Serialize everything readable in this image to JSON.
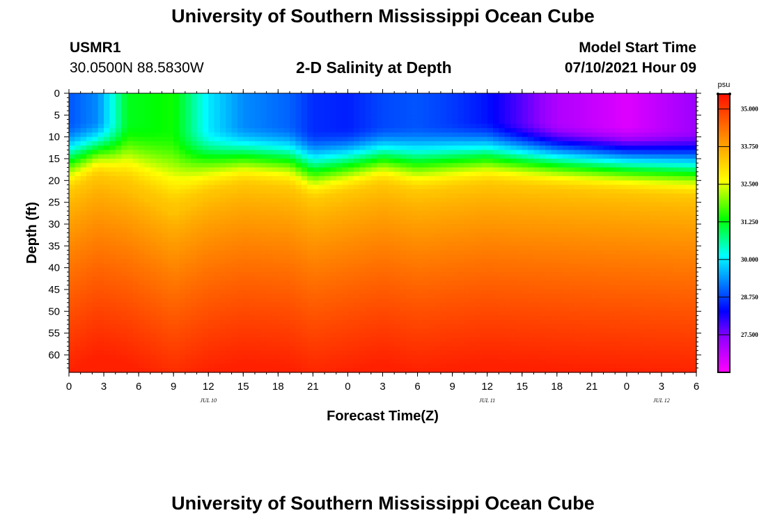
{
  "header": {
    "title_top": "University of Southern Mississippi Ocean Cube",
    "title_bottom": "University of Southern Mississippi Ocean Cube",
    "station_id": "USMR1",
    "station_coords": "30.0500N  88.5830W",
    "plot_title": "2-D Salinity at Depth",
    "model_label": "Model Start Time",
    "model_time": "07/10/2021 Hour 09"
  },
  "chart_data": {
    "type": "heatmap",
    "title": "2-D Salinity at Depth",
    "xlabel": "Forecast Time(Z)",
    "ylabel": "Depth (ft)",
    "x_hours_range": [
      0,
      54
    ],
    "y_depth_range": [
      0,
      64
    ],
    "x_tick_labels": [
      "0",
      "3",
      "6",
      "9",
      "12",
      "15",
      "18",
      "21",
      "0",
      "3",
      "6",
      "9",
      "12",
      "15",
      "18",
      "21",
      "0",
      "3",
      "6"
    ],
    "y_tick_labels": [
      "0",
      "5",
      "10",
      "15",
      "20",
      "25",
      "30",
      "35",
      "40",
      "45",
      "50",
      "55",
      "60"
    ],
    "date_labels": [
      {
        "label": "JUL 10",
        "hour": 12
      },
      {
        "label": "JUL 11",
        "hour": 36
      },
      {
        "label": "JUL 12",
        "hour": 51
      }
    ],
    "colorbar": {
      "unit": "psu",
      "range": [
        26.25,
        35.5
      ],
      "labels": [
        "35.000",
        "33.750",
        "32.500",
        "31.250",
        "30.000",
        "28.750",
        "27.500"
      ]
    },
    "profile": {
      "hours": [
        0,
        2.5,
        5,
        9,
        12,
        15,
        19,
        21,
        24,
        27,
        30,
        33,
        36,
        42,
        48,
        54
      ],
      "surface_salinity": [
        28.9,
        29.3,
        31.2,
        31.4,
        30.0,
        29.3,
        29.0,
        28.6,
        28.5,
        28.8,
        28.9,
        28.7,
        28.4,
        27.1,
        26.6,
        27.3
      ],
      "halocline_top_ft": [
        12,
        11,
        12,
        15,
        14,
        13,
        13,
        15,
        14,
        13,
        13,
        12,
        11,
        12,
        13,
        15
      ],
      "halocline_bottom_ft": [
        24,
        20,
        22,
        28,
        24,
        22,
        23,
        26,
        24,
        22,
        24,
        23,
        22,
        23,
        24,
        25
      ],
      "deep_salinity": 35.3
    }
  }
}
